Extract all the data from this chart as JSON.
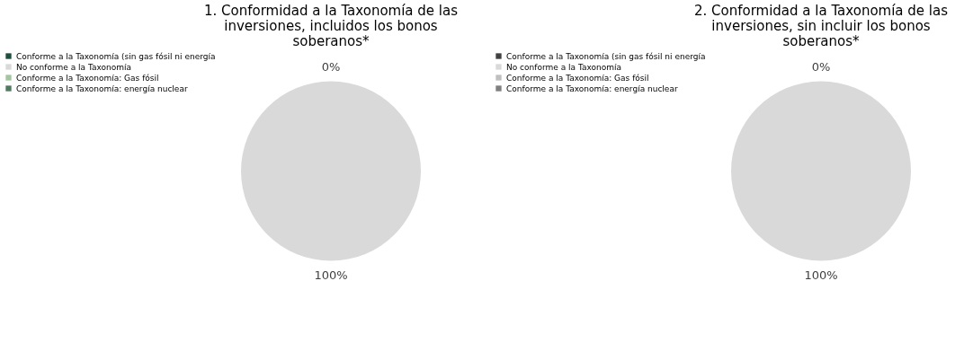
{
  "chart_data": [
    {
      "type": "pie",
      "title": "1. Conformidad a la Taxonomía de las inversiones, incluidos los bonos soberanos*",
      "categories": [
        "Conforme a la Taxonomía (sin gas fósil ni energía",
        "No conforme a la Taxonomía",
        "Conforme a la Taxonomía: Gas fósil",
        "Conforme a la Taxonomía: energía nuclear"
      ],
      "values": [
        0,
        100,
        0,
        0
      ],
      "colors": [
        "#1f4e3d",
        "#d9d9d9",
        "#a3c6a0",
        "#4f7a5f"
      ],
      "value_labels": [
        "0%",
        "100%",
        null,
        null
      ],
      "legend": "left"
    },
    {
      "type": "pie",
      "title": "2. Conformidad a la Taxonomía de las inversiones, sin incluir los bonos soberanos*",
      "categories": [
        "Conforme a la Taxonomía (sin gas fósil ni energía",
        "No conforme a la Taxonomía",
        "Conforme a la Taxonomía: Gas fósil",
        "Conforme a la Taxonomía: energía nuclear"
      ],
      "values": [
        0,
        100,
        0,
        0
      ],
      "colors": [
        "#404040",
        "#d9d9d9",
        "#bfbfbf",
        "#7f7f7f"
      ],
      "value_labels": [
        "0%",
        "100%",
        null,
        null
      ],
      "legend": "left"
    }
  ]
}
